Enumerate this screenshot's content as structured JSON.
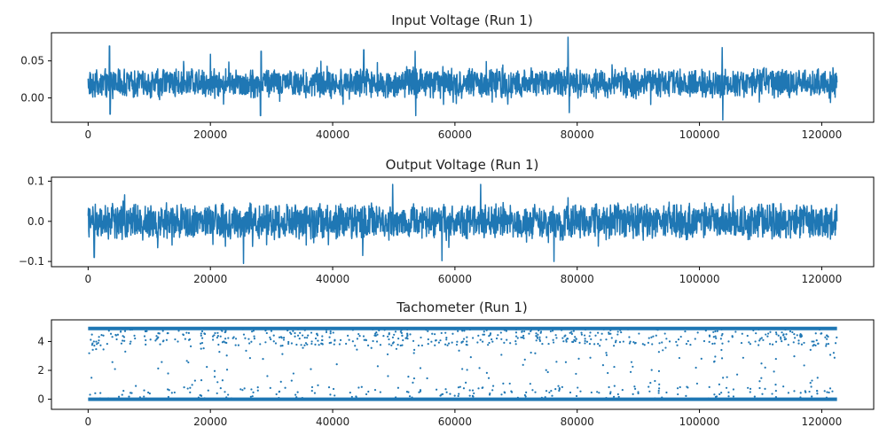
{
  "chart_data": [
    {
      "type": "line",
      "title": "Input Voltage (Run 1)",
      "xlabel": "",
      "ylabel": "",
      "xlim": [
        -6000,
        128500
      ],
      "ylim": [
        -0.033,
        0.088
      ],
      "x_ticks": [
        0,
        20000,
        40000,
        60000,
        80000,
        100000,
        120000
      ],
      "y_ticks": [
        0.0,
        0.05
      ],
      "y_tick_labels": [
        "0.00",
        "0.05"
      ],
      "grid": false,
      "color": "#1f77b4",
      "series_summary": {
        "n_samples": 122500,
        "baseline": 0.02,
        "typical_min": 0.0,
        "typical_max": 0.04
      },
      "peaks": [
        [
          3500,
          0.07
        ],
        [
          3600,
          -0.022
        ],
        [
          28300,
          0.063
        ],
        [
          28200,
          -0.024
        ],
        [
          45100,
          0.065
        ],
        [
          53500,
          0.063
        ],
        [
          53600,
          -0.024
        ],
        [
          78500,
          0.082
        ],
        [
          78700,
          -0.02
        ],
        [
          103800,
          -0.03
        ],
        [
          103700,
          0.068
        ],
        [
          20000,
          0.059
        ]
      ]
    },
    {
      "type": "line",
      "title": "Output Voltage (Run 1)",
      "xlabel": "",
      "ylabel": "",
      "xlim": [
        -6000,
        128500
      ],
      "ylim": [
        -0.113,
        0.11
      ],
      "x_ticks": [
        0,
        20000,
        40000,
        60000,
        80000,
        100000,
        120000
      ],
      "y_ticks": [
        -0.1,
        0.0,
        0.1
      ],
      "y_tick_labels": [
        "−0.1",
        "0.0",
        "0.1"
      ],
      "grid": false,
      "color": "#1f77b4",
      "series_summary": {
        "n_samples": 122500,
        "baseline": 0.0,
        "typical_min": -0.045,
        "typical_max": 0.045
      },
      "peaks": [
        [
          25400,
          -0.105
        ],
        [
          49800,
          0.092
        ],
        [
          57900,
          -0.098
        ],
        [
          64200,
          0.092
        ],
        [
          76200,
          -0.1
        ],
        [
          44900,
          -0.085
        ],
        [
          1000,
          -0.09
        ]
      ]
    },
    {
      "type": "scatter",
      "title": "Tachometer (Run 1)",
      "xlabel": "",
      "ylabel": "",
      "xlim": [
        -6000,
        128500
      ],
      "ylim": [
        -0.7,
        5.5
      ],
      "x_ticks": [
        0,
        20000,
        40000,
        60000,
        80000,
        100000,
        120000
      ],
      "y_ticks": [
        0,
        2,
        4
      ],
      "y_tick_labels": [
        "0",
        "2",
        "4"
      ],
      "grid": false,
      "color": "#1f77b4",
      "series_summary": {
        "n_samples": 122500,
        "level_low": 0.0,
        "level_high": 4.9
      }
    }
  ]
}
